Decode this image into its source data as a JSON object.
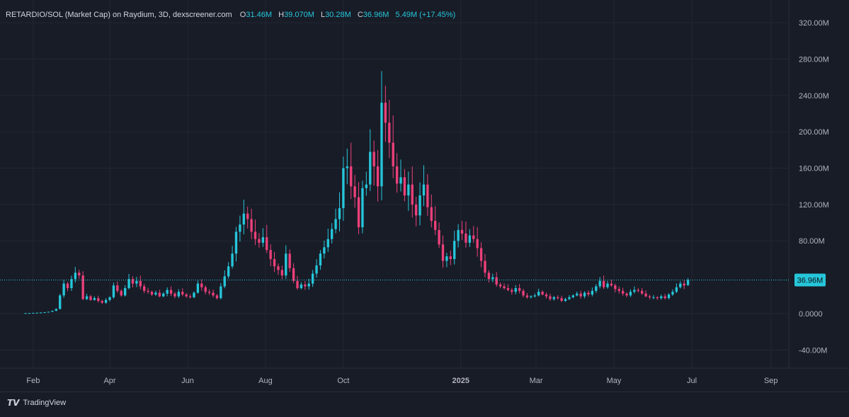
{
  "header": {
    "symbol": "RETARDIO/SOL (Market Cap) on Raydium, 3D, dexscreener.com",
    "o_label": "O",
    "o_value": "31.46M",
    "h_label": "H",
    "h_value": "39.070M",
    "l_label": "L",
    "l_value": "30.28M",
    "c_label": "C",
    "c_value": "36.96M",
    "change": "5.49M (+17.45%)"
  },
  "footer": {
    "brand": "TradingView",
    "brand_icon": "tradingview-logo-icon"
  },
  "colors": {
    "background": "#181c27",
    "up": "#26c6da",
    "down": "#ec407a",
    "grid": "#232733",
    "axis_text": "#b2b5be",
    "price_line": "#26c6da"
  },
  "chart_data": {
    "type": "candlestick",
    "title": "RETARDIO/SOL (Market Cap) on Raydium, 3D, dexscreener.com",
    "x_ticks": [
      {
        "label": "Feb",
        "date": "2024-02-01"
      },
      {
        "label": "Apr",
        "date": "2024-04-01"
      },
      {
        "label": "Jun",
        "date": "2024-06-01"
      },
      {
        "label": "Aug",
        "date": "2024-08-01"
      },
      {
        "label": "Oct",
        "date": "2024-10-01"
      },
      {
        "label": "2025",
        "date": "2025-01-01",
        "bold": true
      },
      {
        "label": "Mar",
        "date": "2025-03-01"
      },
      {
        "label": "May",
        "date": "2025-05-01"
      },
      {
        "label": "Jul",
        "date": "2025-07-01"
      },
      {
        "label": "Sep",
        "date": "2025-09-01"
      }
    ],
    "y_ticks": [
      {
        "value": -40,
        "label": "-40.00M"
      },
      {
        "value": 0,
        "label": "0.0000"
      },
      {
        "value": 80,
        "label": "80.00M"
      },
      {
        "value": 120,
        "label": "120.00M"
      },
      {
        "value": 160,
        "label": "160.00M"
      },
      {
        "value": 200,
        "label": "200.00M"
      },
      {
        "value": 240,
        "label": "240.00M"
      },
      {
        "value": 280,
        "label": "280.00M"
      },
      {
        "value": 320,
        "label": "320.00M"
      }
    ],
    "ylim": [
      -60,
      345
    ],
    "xlim": [
      "2024-01-06",
      "2025-09-15"
    ],
    "last_price": {
      "value": 36.96,
      "label": "36.96M"
    },
    "grid": true,
    "close_series_millions": [
      0.5,
      0.6,
      0.8,
      1.0,
      1.2,
      1.5,
      2,
      3,
      5,
      20,
      33,
      28,
      38,
      45,
      42,
      16,
      19,
      15,
      17,
      14,
      12,
      15,
      18,
      31,
      25,
      20,
      28,
      38,
      33,
      36,
      30,
      25,
      24,
      21,
      23,
      19,
      22,
      26,
      22,
      19,
      24,
      21,
      19,
      18,
      23,
      33,
      29,
      24,
      23,
      20,
      17,
      30,
      41,
      52,
      66,
      90,
      98,
      110,
      104,
      90,
      82,
      78,
      84,
      70,
      60,
      52,
      48,
      42,
      66,
      50,
      36,
      28,
      32,
      30,
      33,
      44,
      53,
      66,
      73,
      82,
      93,
      104,
      116,
      160,
      162,
      140,
      128,
      95,
      138,
      142,
      178,
      162,
      140,
      232,
      210,
      188,
      162,
      143,
      150,
      130,
      142,
      120,
      108,
      130,
      142,
      117,
      102,
      92,
      76,
      58,
      63,
      60,
      80,
      92,
      88,
      78,
      86,
      82,
      72,
      58,
      45,
      38,
      40,
      32,
      30,
      28,
      26,
      24,
      28,
      25,
      20,
      18,
      19,
      20,
      24,
      21,
      19,
      16,
      18,
      17,
      14,
      16,
      18,
      20,
      22,
      19,
      23,
      21,
      25,
      30,
      36,
      29,
      33,
      31,
      27,
      25,
      22,
      20,
      24,
      26,
      25,
      22,
      19,
      18,
      18,
      17,
      19,
      17,
      21,
      24,
      29,
      33,
      31,
      37
    ]
  }
}
